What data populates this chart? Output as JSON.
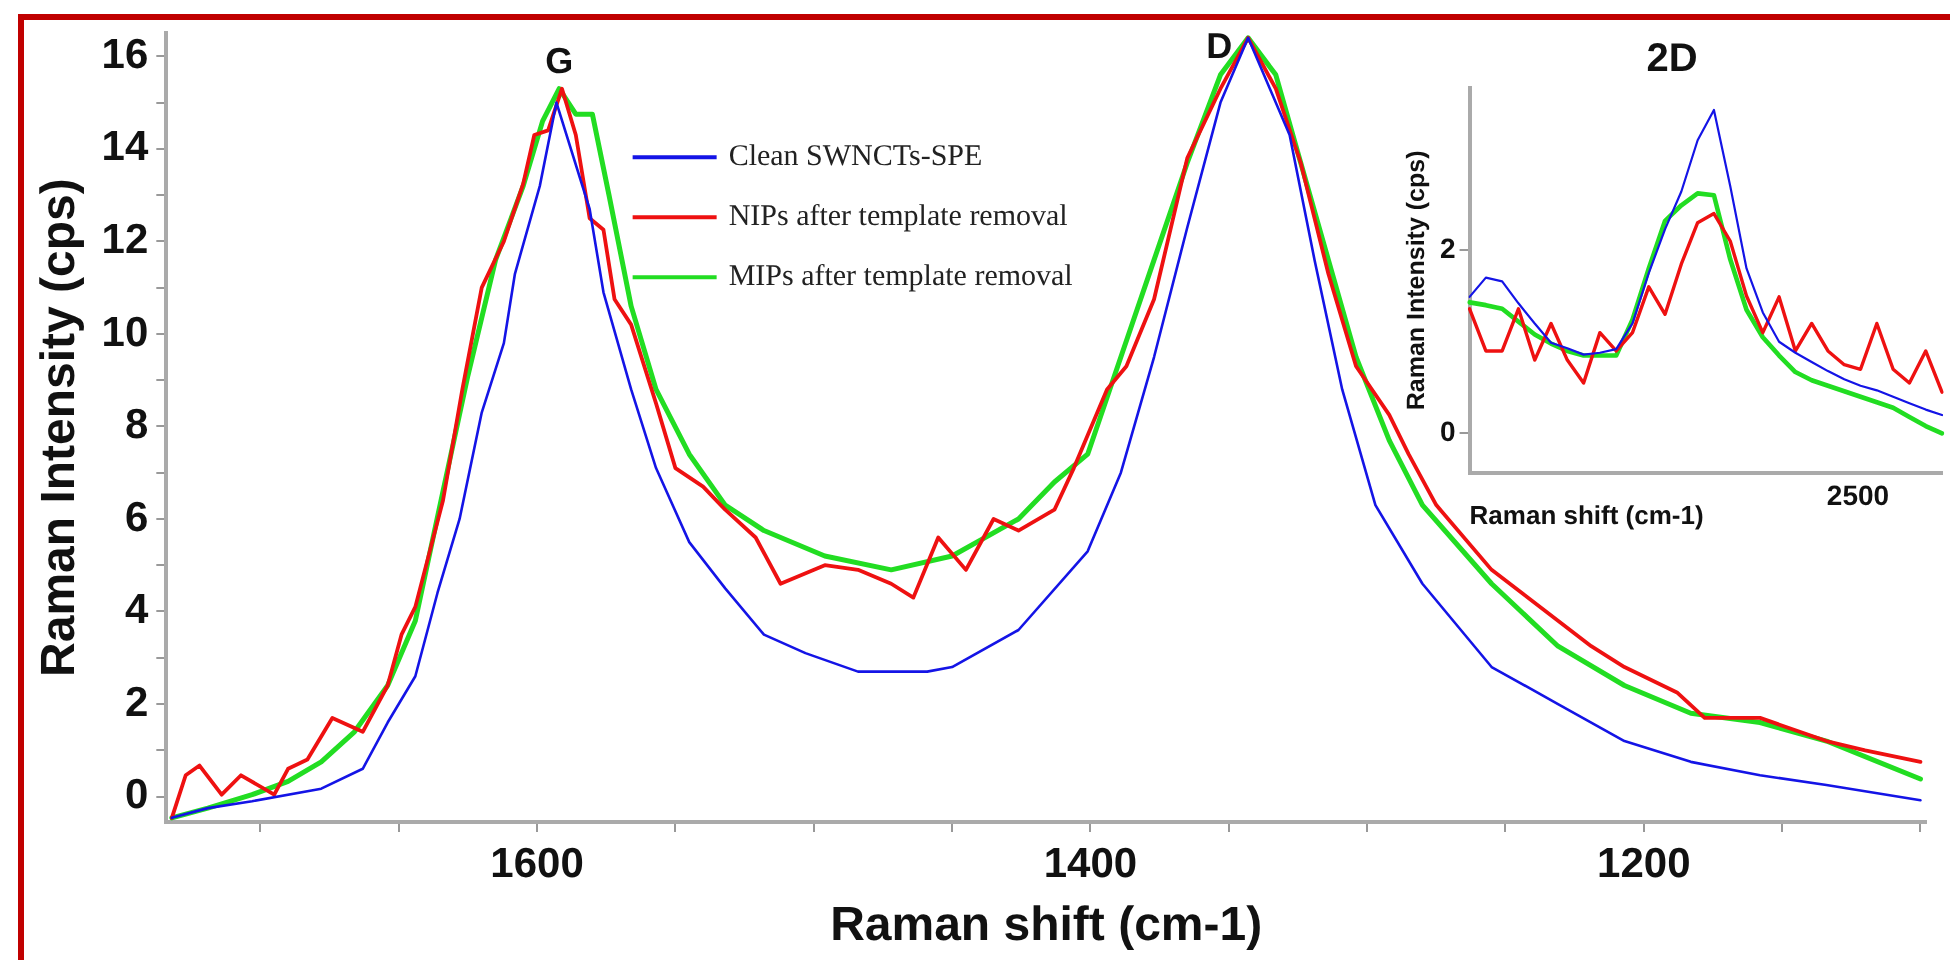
{
  "chart_data": [
    {
      "type": "line",
      "xlabel": "Raman shift (cm-1)",
      "ylabel": "Raman Intensity (cps)",
      "xlim": [
        1734,
        1098
      ],
      "ylim": [
        -0.55,
        16.5
      ],
      "xticks": [
        {
          "value": 1700,
          "label": null
        },
        {
          "value": 1650,
          "label": null
        },
        1600,
        {
          "value": 1550,
          "label": null
        },
        {
          "value": 1500,
          "label": null
        },
        {
          "value": 1450,
          "label": null
        },
        1400,
        {
          "value": 1350,
          "label": null
        },
        {
          "value": 1300,
          "label": null
        },
        {
          "value": 1250,
          "label": null
        },
        1200,
        {
          "value": 1150,
          "label": null
        },
        {
          "value": 1100,
          "label": null
        }
      ],
      "yticks": [
        0,
        {
          "value": 1,
          "label": null
        },
        2,
        {
          "value": 3,
          "label": null
        },
        4,
        {
          "value": 5,
          "label": null
        },
        6,
        {
          "value": 7,
          "label": null
        },
        8,
        {
          "value": 9,
          "label": null
        },
        10,
        {
          "value": 11,
          "label": null
        },
        12,
        {
          "value": 13,
          "label": null
        },
        14,
        {
          "value": 15,
          "label": null
        },
        16
      ],
      "legend": "top",
      "marker": "none",
      "line_style": "solid",
      "annotations": [
        {
          "text": "G",
          "x": 1592,
          "y": 15.3
        },
        {
          "text": "D",
          "x": 1343,
          "y": 16.4
        }
      ],
      "series": [
        {
          "name": "Clean SWNCTs-SPE",
          "color": "#1414e6",
          "x": [
            1732,
            1719,
            1703,
            1678,
            1663,
            1654,
            1644,
            1636,
            1628,
            1620,
            1612,
            1608,
            1599,
            1593,
            1581,
            1576,
            1566,
            1557,
            1545,
            1532,
            1518,
            1503,
            1484,
            1459,
            1450,
            1426,
            1401,
            1389,
            1377,
            1365,
            1353,
            1343,
            1328,
            1319,
            1309,
            1297,
            1280,
            1255,
            1231,
            1207,
            1183,
            1158,
            1134,
            1100
          ],
          "values": [
            -0.46,
            -0.25,
            -0.1,
            0.17,
            0.6,
            1.6,
            2.6,
            4.4,
            6.0,
            8.3,
            9.8,
            11.3,
            13.2,
            15.0,
            12.7,
            10.9,
            8.8,
            7.1,
            5.5,
            4.5,
            3.5,
            3.1,
            2.7,
            2.7,
            2.8,
            3.6,
            5.3,
            7.0,
            9.5,
            12.3,
            15.0,
            16.4,
            14.3,
            11.6,
            8.8,
            6.3,
            4.6,
            2.8,
            2.0,
            1.2,
            0.75,
            0.46,
            0.25,
            -0.08
          ]
        },
        {
          "name": "NIPs after template removal",
          "color": "#ee1111",
          "x": [
            1732,
            1727,
            1722,
            1714,
            1707,
            1695,
            1690,
            1683,
            1674,
            1663,
            1654,
            1649,
            1644,
            1634,
            1627,
            1620,
            1612,
            1605,
            1601,
            1596,
            1591,
            1586,
            1581,
            1576,
            1572,
            1566,
            1557,
            1550,
            1540,
            1532,
            1521,
            1512,
            1496,
            1484,
            1472,
            1464,
            1455,
            1445,
            1435,
            1426,
            1413,
            1406,
            1394,
            1387,
            1377,
            1365,
            1353,
            1343,
            1333,
            1324,
            1314,
            1304,
            1292,
            1285,
            1275,
            1255,
            1231,
            1219,
            1207,
            1188,
            1178,
            1158,
            1134,
            1120,
            1100
          ],
          "values": [
            -0.46,
            0.46,
            0.67,
            0.04,
            0.46,
            0.04,
            0.6,
            0.8,
            1.7,
            1.4,
            2.4,
            3.5,
            4.1,
            6.4,
            8.8,
            11.0,
            12.0,
            13.25,
            14.3,
            14.4,
            15.3,
            14.3,
            12.5,
            12.25,
            10.75,
            10.2,
            8.5,
            7.1,
            6.7,
            6.2,
            5.6,
            4.6,
            5.0,
            4.9,
            4.6,
            4.3,
            5.6,
            4.9,
            6.0,
            5.75,
            6.2,
            7.1,
            8.8,
            9.3,
            10.75,
            13.8,
            15.3,
            16.4,
            15.3,
            13.7,
            11.3,
            9.3,
            8.25,
            7.4,
            6.3,
            4.9,
            3.8,
            3.25,
            2.8,
            2.25,
            1.7,
            1.7,
            1.2,
            1.0,
            0.75
          ]
        },
        {
          "name": "MIPs after template removal",
          "color": "#22dd22",
          "x": [
            1732,
            1719,
            1703,
            1690,
            1678,
            1666,
            1654,
            1644,
            1634,
            1625,
            1615,
            1605,
            1598,
            1592,
            1586,
            1580,
            1574,
            1566,
            1557,
            1545,
            1532,
            1518,
            1496,
            1472,
            1450,
            1426,
            1413,
            1401,
            1389,
            1377,
            1365,
            1353,
            1343,
            1333,
            1324,
            1314,
            1304,
            1292,
            1280,
            1255,
            1231,
            1207,
            1183,
            1158,
            1134,
            1100
          ],
          "values": [
            -0.46,
            -0.25,
            0.04,
            0.33,
            0.75,
            1.4,
            2.4,
            3.8,
            6.6,
            9.1,
            11.6,
            13.2,
            14.6,
            15.3,
            14.75,
            14.75,
            13.0,
            10.6,
            8.8,
            7.4,
            6.3,
            5.75,
            5.2,
            4.9,
            5.2,
            6.0,
            6.8,
            7.4,
            9.5,
            11.6,
            13.7,
            15.6,
            16.4,
            15.6,
            13.7,
            11.6,
            9.5,
            7.7,
            6.3,
            4.6,
            3.25,
            2.4,
            1.8,
            1.6,
            1.2,
            0.38
          ]
        }
      ]
    },
    {
      "type": "line",
      "title": "2D",
      "xlabel": "Raman shift (cm-1)",
      "ylabel": "Raman Intensity (cps)",
      "categories": [
        null,
        null,
        null,
        null,
        null,
        null,
        null,
        null,
        null,
        null,
        null,
        null,
        null,
        null,
        null,
        null,
        null,
        null,
        null,
        null,
        null,
        null,
        null,
        null,
        null,
        null,
        null,
        null,
        null,
        null
      ],
      "ylim": [
        -0.43,
        3.77
      ],
      "yticks": [
        0,
        2
      ],
      "marker": "none",
      "line_style": "solid",
      "annotations": [
        "2500"
      ],
      "series": [
        {
          "color": "#1414e6",
          "values": [
            1.49,
            1.7,
            1.66,
            1.42,
            1.2,
            0.99,
            0.93,
            0.86,
            0.88,
            0.92,
            1.2,
            1.75,
            2.23,
            2.64,
            3.2,
            3.53,
            2.7,
            1.8,
            1.32,
            1.0,
            0.88,
            0.78,
            0.68,
            0.59,
            0.52,
            0.47,
            0.4,
            0.33,
            0.26,
            0.2
          ]
        },
        {
          "color": "#ee1111",
          "values": [
            1.36,
            0.9,
            0.9,
            1.36,
            0.8,
            1.2,
            0.8,
            0.55,
            1.1,
            0.9,
            1.1,
            1.6,
            1.3,
            1.85,
            2.3,
            2.4,
            2.1,
            1.5,
            1.1,
            1.49,
            0.9,
            1.2,
            0.9,
            0.75,
            0.7,
            1.2,
            0.7,
            0.55,
            0.9,
            0.45
          ]
        },
        {
          "color": "#22dd22",
          "values": [
            1.43,
            1.4,
            1.36,
            1.22,
            1.08,
            0.98,
            0.9,
            0.85,
            0.85,
            0.85,
            1.24,
            1.8,
            2.32,
            2.49,
            2.62,
            2.6,
            1.9,
            1.35,
            1.05,
            0.85,
            0.67,
            0.58,
            0.52,
            0.46,
            0.4,
            0.34,
            0.28,
            0.18,
            0.08,
            0.0
          ]
        }
      ]
    }
  ]
}
